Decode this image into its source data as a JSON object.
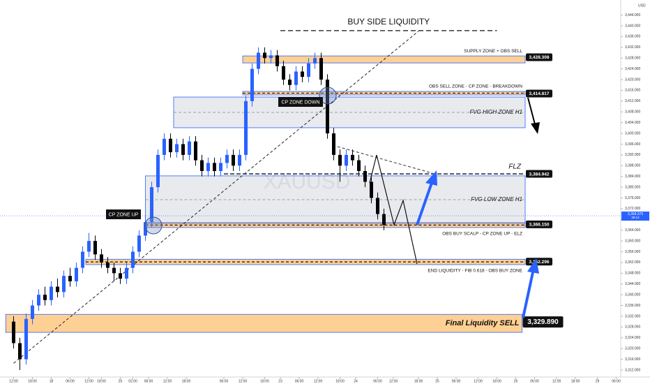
{
  "chart_data": {
    "type": "candlestick",
    "symbol_watermark": "XAUUSD",
    "currency": "USD",
    "up_color": "#2962ff",
    "down_color": "#000000",
    "xlim": [
      -3.33,
      194.44
    ],
    "ylim": [
      3309.4,
      3449.6
    ],
    "x": [
      1,
      3,
      5,
      7,
      9,
      11,
      13,
      15,
      17,
      19,
      21,
      23,
      25,
      27,
      29,
      31,
      33,
      35,
      37,
      39,
      41,
      43,
      45,
      47,
      49,
      51,
      53,
      55,
      57,
      59,
      61,
      63,
      65,
      67,
      69,
      71,
      73,
      75,
      77,
      79,
      81,
      83,
      85,
      87,
      89,
      91,
      93,
      95,
      97,
      99,
      101,
      103,
      105,
      107,
      109,
      111,
      113,
      115,
      117,
      119
    ],
    "open": [
      3330,
      3322,
      3316,
      3331,
      3336,
      3340,
      3338,
      3343,
      3341,
      3347,
      3345,
      3350,
      3356,
      3360,
      3355,
      3352,
      3350,
      3348,
      3346,
      3350,
      3356,
      3362,
      3367,
      3380,
      3392,
      3398,
      3393,
      3396,
      3392,
      3397,
      3390,
      3386,
      3389,
      3386,
      3389,
      3392,
      3388,
      3392,
      3412,
      3424,
      3430,
      3428,
      3429,
      3425,
      3420,
      3418,
      3423,
      3421,
      3426,
      3428,
      3420,
      3400,
      3392,
      3388,
      3392,
      3390,
      3386,
      3382,
      3376,
      3370
    ],
    "high": [
      3332,
      3324,
      3333,
      3338,
      3342,
      3343,
      3345,
      3346,
      3349,
      3350,
      3352,
      3358,
      3363,
      3362,
      3357,
      3354,
      3352,
      3350,
      3352,
      3358,
      3364,
      3369,
      3382,
      3394,
      3400,
      3400,
      3398,
      3398,
      3399,
      3399,
      3392,
      3391,
      3391,
      3391,
      3394,
      3394,
      3394,
      3414,
      3426,
      3432,
      3432,
      3431,
      3431,
      3427,
      3422,
      3425,
      3425,
      3428,
      3430,
      3430,
      3422,
      3402,
      3394,
      3394,
      3394,
      3392,
      3388,
      3384,
      3378,
      3372
    ],
    "low": [
      3320,
      3312,
      3314,
      3329,
      3334,
      3336,
      3336,
      3339,
      3339,
      3343,
      3343,
      3348,
      3354,
      3353,
      3350,
      3348,
      3345,
      3344,
      3344,
      3348,
      3354,
      3360,
      3365,
      3378,
      3390,
      3391,
      3391,
      3390,
      3390,
      3388,
      3384,
      3384,
      3384,
      3384,
      3387,
      3386,
      3386,
      3390,
      3410,
      3422,
      3426,
      3426,
      3423,
      3418,
      3416,
      3416,
      3419,
      3419,
      3424,
      3418,
      3398,
      3390,
      3382,
      3386,
      3388,
      3384,
      3380,
      3374,
      3368,
      3364
    ],
    "close": [
      3322,
      3316,
      3331,
      3336,
      3340,
      3338,
      3343,
      3341,
      3347,
      3345,
      3350,
      3356,
      3360,
      3355,
      3352,
      3350,
      3348,
      3346,
      3350,
      3356,
      3362,
      3367,
      3380,
      3392,
      3398,
      3393,
      3396,
      3392,
      3397,
      3390,
      3386,
      3389,
      3386,
      3389,
      3392,
      3388,
      3392,
      3412,
      3424,
      3430,
      3428,
      3429,
      3425,
      3420,
      3418,
      3423,
      3421,
      3426,
      3428,
      3420,
      3400,
      3392,
      3388,
      3392,
      3390,
      3386,
      3382,
      3376,
      3370,
      3366
    ],
    "xticks": [
      {
        "value": 1,
        "label": "12:00"
      },
      {
        "value": 7,
        "label": "18:00"
      },
      {
        "value": 13,
        "label": "18"
      },
      {
        "value": 19,
        "label": "06:00"
      },
      {
        "value": 25,
        "label": "12:00"
      },
      {
        "value": 29,
        "label": "18:00"
      },
      {
        "value": 35,
        "label": "20"
      },
      {
        "value": 39,
        "label": "02:00"
      },
      {
        "value": 44,
        "label": "06:00"
      },
      {
        "value": 50,
        "label": "12:00"
      },
      {
        "value": 56,
        "label": "18:00"
      },
      {
        "value": 68,
        "label": "06:00"
      },
      {
        "value": 74,
        "label": "12:00"
      },
      {
        "value": 81,
        "label": "18:00"
      },
      {
        "value": 86,
        "label": "23"
      },
      {
        "value": 92,
        "label": "06:00"
      },
      {
        "value": 98,
        "label": "12:00"
      },
      {
        "value": 105,
        "label": "18:00"
      },
      {
        "value": 110,
        "label": "24"
      },
      {
        "value": 117,
        "label": "06:00"
      },
      {
        "value": 122,
        "label": "12:00"
      },
      {
        "value": 130,
        "label": "18:00"
      },
      {
        "value": 136,
        "label": "25"
      },
      {
        "value": 142,
        "label": "06:00"
      },
      {
        "value": 149,
        "label": "12:00"
      },
      {
        "value": 155,
        "label": "18:00"
      },
      {
        "value": 161,
        "label": "26"
      },
      {
        "value": 167,
        "label": "06:00"
      },
      {
        "value": 174,
        "label": "12:00"
      },
      {
        "value": 180,
        "label": "18:00"
      },
      {
        "value": 187,
        "label": "29"
      },
      {
        "value": 193,
        "label": "06:00"
      }
    ],
    "yticks": [
      {
        "value": 3312,
        "label": "3,312.000"
      },
      {
        "value": 3316,
        "label": "3,316.000"
      },
      {
        "value": 3320,
        "label": "3,320.000"
      },
      {
        "value": 3324,
        "label": "3,324.000"
      },
      {
        "value": 3328,
        "label": "3,328.000"
      },
      {
        "value": 3332,
        "label": "3,332.000"
      },
      {
        "value": 3336,
        "label": "3,336.000"
      },
      {
        "value": 3340,
        "label": "3,340.000"
      },
      {
        "value": 3344,
        "label": "3,344.000"
      },
      {
        "value": 3348,
        "label": "3,348.000"
      },
      {
        "value": 3352,
        "label": "3,352.000"
      },
      {
        "value": 3356,
        "label": "3,356.000"
      },
      {
        "value": 3360,
        "label": "3,360.000"
      },
      {
        "value": 3364,
        "label": "3,364.000"
      },
      {
        "value": 3368,
        "label": "3,368.000"
      },
      {
        "value": 3372,
        "label": "3,372.000"
      },
      {
        "value": 3376,
        "label": "3,376.000"
      },
      {
        "value": 3380,
        "label": "3,380.000"
      },
      {
        "value": 3384,
        "label": "3,384.000"
      },
      {
        "value": 3388,
        "label": "3,388.000"
      },
      {
        "value": 3392,
        "label": "3,392.000"
      },
      {
        "value": 3396,
        "label": "3,396.000"
      },
      {
        "value": 3400,
        "label": "3,400.000"
      },
      {
        "value": 3404,
        "label": "3,404.000"
      },
      {
        "value": 3408,
        "label": "3,408.000"
      },
      {
        "value": 3412,
        "label": "3,412.000"
      },
      {
        "value": 3416,
        "label": "3,416.000"
      },
      {
        "value": 3420,
        "label": "3,420.000"
      },
      {
        "value": 3424,
        "label": "3,424.000"
      },
      {
        "value": 3428,
        "label": "3,428.000"
      },
      {
        "value": 3432,
        "label": "3,432.000"
      },
      {
        "value": 3436,
        "label": "3,436.000"
      },
      {
        "value": 3440,
        "label": "3,440.000"
      },
      {
        "value": 3444,
        "label": "3,444.000"
      }
    ],
    "current_price": {
      "value": 3369.37,
      "label": "3,369.370"
    },
    "countdown": "38:12",
    "buy_side_liquidity": {
      "label": "BUY SIDE LIQUIDITY",
      "price": 3438.2,
      "x_range": [
        86,
        155
      ]
    },
    "trendline": {
      "x": [
        1,
        130
      ],
      "y": [
        3314.5,
        3438
      ]
    },
    "callouts": [
      "CP ZONE UP",
      "CP ZONE DOWN"
    ],
    "zones": [
      {
        "label": "SUPPLY ZONE + OBS SELL",
        "style": "orange",
        "label_side": "above",
        "midline": false,
        "top": 3428.8,
        "bottom": 3426.2,
        "x_range": [
          74,
          164
        ],
        "price": {
          "value": 3428.308,
          "label": "3,428.308"
        }
      },
      {
        "label": "OBS SELL ZONE - CP ZONE - BREAKDOWN",
        "style": "orange",
        "label_side": "above",
        "midline": true,
        "top": 3415.6,
        "bottom": 3414.3,
        "x_range": [
          74,
          164
        ],
        "price": {
          "value": 3414.817,
          "label": "3,414.817"
        }
      },
      {
        "label": "FVG HIGH ZONE H1",
        "style": "gray",
        "label_side": "inside",
        "midline": true,
        "top": 3413.5,
        "bottom": 3402.1,
        "x_range": [
          52,
          164
        ]
      },
      {
        "label": "FLZ",
        "style": "line",
        "label_side": "above",
        "x_range": [
          68,
          164
        ],
        "price": {
          "value": 3384.942,
          "label": "3,384.942"
        }
      },
      {
        "label": "FVG LOW ZONE H1",
        "style": "gray",
        "label_side": "inside",
        "midline": true,
        "top": 3384.2,
        "bottom": 3366.5,
        "x_range": [
          43,
          164
        ]
      },
      {
        "label": "OBS BUY SCALP - CP ZONE UP - ELZ",
        "style": "orange",
        "label_side": "below",
        "midline": true,
        "top": 3366.8,
        "bottom": 3365.0,
        "x_range": [
          43,
          164
        ],
        "price": {
          "value": 3366.15,
          "label": "3,366.150"
        }
      },
      {
        "label": "END LIQUIDITY - FIB 0.618 - OBS BUY ZONE",
        "style": "orange",
        "label_side": "below",
        "midline": true,
        "top": 3353.2,
        "bottom": 3351.2,
        "x_range": [
          24,
          164
        ],
        "price": {
          "value": 3352.296,
          "label": "3,352.296"
        }
      },
      {
        "label": "Final Liquidity SELL",
        "style": "orange-big",
        "label_side": "inside",
        "midline": false,
        "top": 3332.7,
        "bottom": 3326.0,
        "x_range": [
          -1.5,
          163
        ],
        "price": {
          "value": 3329.89,
          "label": "3,329.890"
        }
      }
    ]
  }
}
